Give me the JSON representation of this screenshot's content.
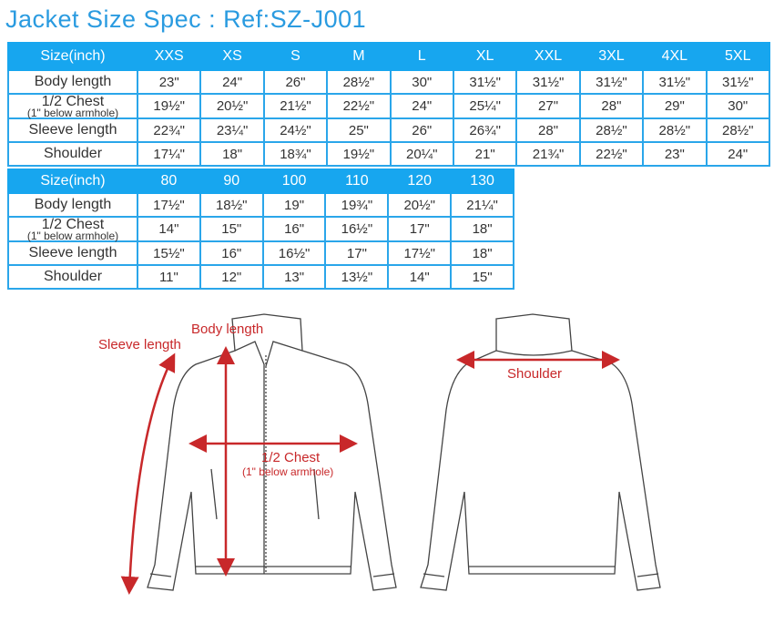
{
  "title": "Jacket Size Spec : Ref:SZ-J001",
  "accent": "#17a6ef",
  "measure_color": "#c8282a",
  "adult": {
    "header": "Size(inch)",
    "sizes": [
      "XXS",
      "XS",
      "S",
      "M",
      "L",
      "XL",
      "XXL",
      "3XL",
      "4XL",
      "5XL"
    ],
    "rows": [
      {
        "label": "Body length",
        "values": [
          "23\"",
          "24\"",
          "26\"",
          "28½\"",
          "30\"",
          "31½\"",
          "31½\"",
          "31½\"",
          "31½\"",
          "31½\""
        ]
      },
      {
        "label": "1/2 Chest",
        "sub": "(1\" below armhole)",
        "values": [
          "19½\"",
          "20½\"",
          "21½\"",
          "22½\"",
          "24\"",
          "25¼\"",
          "27\"",
          "28\"",
          "29\"",
          "30\""
        ]
      },
      {
        "label": "Sleeve length",
        "values": [
          "22¾\"",
          "23¼\"",
          "24½\"",
          "25\"",
          "26\"",
          "26¾\"",
          "28\"",
          "28½\"",
          "28½\"",
          "28½\""
        ]
      },
      {
        "label": "Shoulder",
        "values": [
          "17¼\"",
          "18\"",
          "18¾\"",
          "19½\"",
          "20¼\"",
          "21\"",
          "21¾\"",
          "22½\"",
          "23\"",
          "24\""
        ]
      }
    ]
  },
  "kids": {
    "header": "Size(inch)",
    "sizes": [
      "80",
      "90",
      "100",
      "110",
      "120",
      "130"
    ],
    "rows": [
      {
        "label": "Body length",
        "values": [
          "17½\"",
          "18½\"",
          "19\"",
          "19¾\"",
          "20½\"",
          "21¼\""
        ]
      },
      {
        "label": "1/2 Chest",
        "sub": "(1\" below armhole)",
        "values": [
          "14\"",
          "15\"",
          "16\"",
          "16½\"",
          "17\"",
          "18\""
        ]
      },
      {
        "label": "Sleeve length",
        "values": [
          "15½\"",
          "16\"",
          "16½\"",
          "17\"",
          "17½\"",
          "18\""
        ]
      },
      {
        "label": "Shoulder",
        "values": [
          "11\"",
          "12\"",
          "13\"",
          "13½\"",
          "14\"",
          "15\""
        ]
      }
    ]
  },
  "diagram": {
    "body_length": "Body length",
    "sleeve_length": "Sleeve length",
    "chest": "1/2 Chest",
    "chest_sub": "(1\" below armhole)",
    "shoulder": "Shoulder"
  }
}
